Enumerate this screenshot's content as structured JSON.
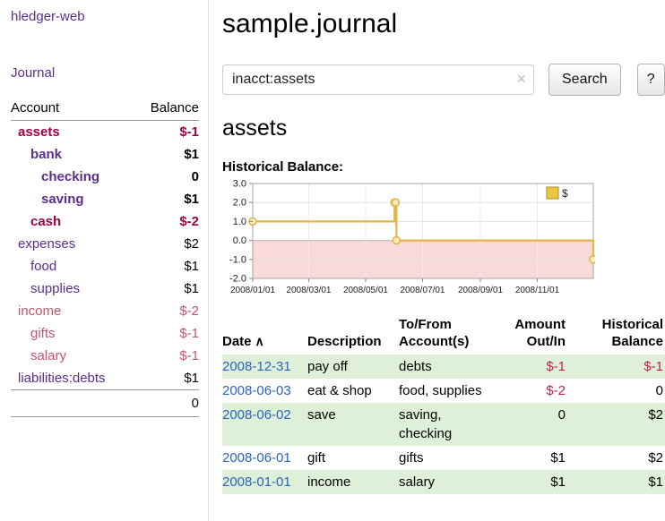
{
  "brand": "hledger-web",
  "sidebar": {
    "journal_label": "Journal",
    "table_headers": {
      "account": "Account",
      "balance": "Balance"
    },
    "accounts": [
      {
        "name": "assets",
        "balance": "$-1",
        "indent": 0,
        "bold": true,
        "name_negative": true,
        "balance_negative": true
      },
      {
        "name": "bank",
        "balance": "$1",
        "indent": 1,
        "bold": true,
        "name_negative": false,
        "balance_negative": false
      },
      {
        "name": "checking",
        "balance": "0",
        "indent": 2,
        "bold": true,
        "name_negative": false,
        "balance_negative": false
      },
      {
        "name": "saving",
        "balance": "$1",
        "indent": 2,
        "bold": true,
        "name_negative": false,
        "balance_negative": false
      },
      {
        "name": "cash",
        "balance": "$-2",
        "indent": 1,
        "bold": true,
        "name_negative": true,
        "balance_negative": true
      },
      {
        "name": "expenses",
        "balance": "$2",
        "indent": 0,
        "bold": false,
        "name_negative": false,
        "balance_negative": false
      },
      {
        "name": "food",
        "balance": "$1",
        "indent": 1,
        "bold": false,
        "name_negative": false,
        "balance_negative": false
      },
      {
        "name": "supplies",
        "balance": "$1",
        "indent": 1,
        "bold": false,
        "name_negative": false,
        "balance_negative": false
      },
      {
        "name": "income",
        "balance": "$-2",
        "indent": 0,
        "bold": false,
        "name_negative": true,
        "balance_negative": true
      },
      {
        "name": "gifts",
        "balance": "$-1",
        "indent": 1,
        "bold": false,
        "name_negative": true,
        "balance_negative": true
      },
      {
        "name": "salary",
        "balance": "$-1",
        "indent": 1,
        "bold": false,
        "name_negative": true,
        "balance_negative": true
      },
      {
        "name": "liabilities:debts",
        "balance": "$1",
        "indent": 0,
        "bold": false,
        "name_negative": false,
        "balance_negative": false
      }
    ],
    "total": "0"
  },
  "main": {
    "title": "sample.journal",
    "search": {
      "value": "inacct:assets",
      "clear_icon": "×",
      "button_label": "Search",
      "help_label": "?"
    },
    "heading": "assets",
    "chart_label": "Historical Balance:"
  },
  "chart_data": {
    "type": "line",
    "title": "Historical Balance:",
    "x_start": "2008-01-01",
    "x_end": "2008-12-31",
    "ylim": [
      -2,
      3
    ],
    "yticks": [
      {
        "value": 3,
        "label": "3.0"
      },
      {
        "value": 2,
        "label": "2.0"
      },
      {
        "value": 1,
        "label": "1.0"
      },
      {
        "value": 0,
        "label": "0.0"
      },
      {
        "value": -1,
        "label": "-1.0"
      },
      {
        "value": -2,
        "label": "-2.0"
      }
    ],
    "xticks": [
      {
        "date": "2008-01-01",
        "label": "2008/01/01"
      },
      {
        "date": "2008-03-01",
        "label": "2008/03/01"
      },
      {
        "date": "2008-05-01",
        "label": "2008/05/01"
      },
      {
        "date": "2008-07-01",
        "label": "2008/07/01"
      },
      {
        "date": "2008-09-01",
        "label": "2008/09/01"
      },
      {
        "date": "2008-11-01",
        "label": "2008/11/01"
      }
    ],
    "points": [
      {
        "date": "2008-01-01",
        "value": 1
      },
      {
        "date": "2008-06-01",
        "value": 2
      },
      {
        "date": "2008-06-02",
        "value": 2
      },
      {
        "date": "2008-06-03",
        "value": 0
      },
      {
        "date": "2008-12-31",
        "value": -1
      }
    ],
    "line_color": "#e0b644",
    "marker_fill": "#f7ecc4",
    "negative_region_color": "#f9d9d9",
    "legend": {
      "label": "$",
      "fill": "#ecc83f",
      "border": "#a8922d"
    }
  },
  "register": {
    "headers": [
      "Date",
      "Description",
      "To/From Account(s)",
      "Amount Out/In",
      "Historical Balance"
    ],
    "sort_icon": "∧",
    "rows": [
      {
        "date": "2008-12-31",
        "description": "pay off",
        "accounts": "debts",
        "amount": "$-1",
        "amount_negative": true,
        "balance": "$-1",
        "balance_negative": true,
        "shaded": true
      },
      {
        "date": "2008-06-03",
        "description": "eat & shop",
        "accounts": "food, supplies",
        "amount": "$-2",
        "amount_negative": true,
        "balance": "0",
        "balance_negative": false,
        "shaded": false
      },
      {
        "date": "2008-06-02",
        "description": "save",
        "accounts": "saving, checking",
        "amount": "0",
        "amount_negative": false,
        "balance": "$2",
        "balance_negative": false,
        "shaded": true
      },
      {
        "date": "2008-06-01",
        "description": "gift",
        "accounts": "gifts",
        "amount": "$1",
        "amount_negative": false,
        "balance": "$2",
        "balance_negative": false,
        "shaded": false
      },
      {
        "date": "2008-01-01",
        "description": "income",
        "accounts": "salary",
        "amount": "$1",
        "amount_negative": false,
        "balance": "$1",
        "balance_negative": false,
        "shaded": true
      }
    ]
  },
  "colors": {
    "accent": "#5c2d91",
    "neg_strong": "#a30044",
    "neg_soft": "#c4556e",
    "reg_neg": "#bf1f4f",
    "link_blue": "#2a64c5",
    "row_shade": "#dff0d8"
  }
}
